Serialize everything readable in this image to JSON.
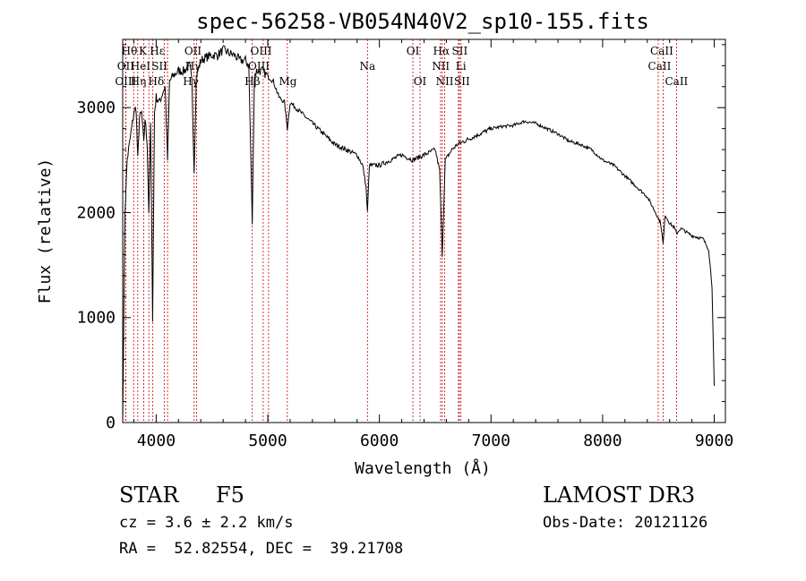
{
  "chart_data": {
    "type": "line",
    "title": "spec-56258-VB054N40V2_sp10-155.fits",
    "xlabel": "Wavelength (Å)",
    "ylabel": "Flux (relative)",
    "xlim": [
      3700,
      9100
    ],
    "ylim": [
      0,
      3650
    ],
    "xticks": [
      4000,
      5000,
      6000,
      7000,
      8000,
      9000
    ],
    "yticks": [
      0,
      1000,
      2000,
      3000
    ],
    "grid": false,
    "series": [
      {
        "name": "flux",
        "x": [
          3700,
          3720,
          3740,
          3760,
          3780,
          3800,
          3820,
          3835,
          3850,
          3870,
          3889,
          3900,
          3920,
          3934,
          3950,
          3968,
          3985,
          4000,
          4030,
          4060,
          4080,
          4102,
          4120,
          4150,
          4200,
          4250,
          4300,
          4320,
          4340,
          4360,
          4400,
          4450,
          4500,
          4550,
          4600,
          4650,
          4700,
          4750,
          4800,
          4830,
          4861,
          4880,
          4900,
          4950,
          5000,
          5050,
          5100,
          5150,
          5175,
          5200,
          5300,
          5400,
          5500,
          5600,
          5700,
          5800,
          5850,
          5880,
          5893,
          5910,
          5950,
          6000,
          6100,
          6200,
          6300,
          6400,
          6500,
          6540,
          6563,
          6590,
          6650,
          6700,
          6800,
          6900,
          7000,
          7100,
          7200,
          7300,
          7400,
          7500,
          7600,
          7700,
          7800,
          7900,
          8000,
          8100,
          8200,
          8300,
          8400,
          8450,
          8498,
          8520,
          8542,
          8560,
          8600,
          8640,
          8662,
          8700,
          8800,
          8900,
          8950,
          8980,
          9000
        ],
        "y": [
          0,
          2000,
          2500,
          2650,
          2800,
          2950,
          3000,
          2500,
          2900,
          2950,
          2650,
          2900,
          2650,
          2000,
          2850,
          1000,
          2950,
          3100,
          3050,
          3150,
          3200,
          2500,
          3250,
          3300,
          3350,
          3350,
          3400,
          3250,
          2400,
          3300,
          3450,
          3480,
          3500,
          3500,
          3550,
          3520,
          3500,
          3450,
          3450,
          3400,
          1900,
          3300,
          3350,
          3350,
          3300,
          3250,
          3100,
          3050,
          2800,
          3050,
          2950,
          2850,
          2750,
          2650,
          2600,
          2550,
          2450,
          2250,
          2000,
          2450,
          2450,
          2450,
          2500,
          2550,
          2500,
          2550,
          2600,
          2400,
          1600,
          2500,
          2600,
          2650,
          2700,
          2750,
          2800,
          2820,
          2830,
          2870,
          2850,
          2800,
          2750,
          2680,
          2650,
          2600,
          2500,
          2450,
          2350,
          2250,
          2150,
          2050,
          1950,
          1900,
          1700,
          1980,
          1900,
          1860,
          1800,
          1850,
          1780,
          1750,
          1650,
          1300,
          350
        ]
      }
    ],
    "lines": [
      {
        "name": "Hθ",
        "x": 3798
      },
      {
        "name": "OII",
        "x": 3727
      },
      {
        "name": "OIII",
        "x": 3727
      },
      {
        "name": "K",
        "x": 3934
      },
      {
        "name": "HeI",
        "x": 3889
      },
      {
        "name": "Hη",
        "x": 3835
      },
      {
        "name": "Hε",
        "x": 3970
      },
      {
        "name": "SII",
        "x": 4072
      },
      {
        "name": "Hδ",
        "x": 4102
      },
      {
        "name": "OIII",
        "x": 4363
      },
      {
        "name": "Hγ",
        "x": 4340
      },
      {
        "name": "Hβ",
        "x": 4861
      },
      {
        "name": "OIII",
        "x": 4959
      },
      {
        "name": "OIII",
        "x": 5007
      },
      {
        "name": "Mg",
        "x": 5175
      },
      {
        "name": "Na",
        "x": 5893
      },
      {
        "name": "OI",
        "x": 6300
      },
      {
        "name": "OI",
        "x": 6364
      },
      {
        "name": "Hα",
        "x": 6563
      },
      {
        "name": "NII",
        "x": 6548
      },
      {
        "name": "NII",
        "x": 6584
      },
      {
        "name": "SII",
        "x": 6717
      },
      {
        "name": "Li",
        "x": 6708
      },
      {
        "name": "SII",
        "x": 6731
      },
      {
        "name": "CaII",
        "x": 8498
      },
      {
        "name": "CaII",
        "x": 8542
      },
      {
        "name": "CaII",
        "x": 8662
      }
    ],
    "line_labels": [
      {
        "text": "Hθ",
        "row": 0,
        "x": 3760
      },
      {
        "text": "OII",
        "row": 1,
        "x": 3727
      },
      {
        "text": "OIII",
        "row": 2,
        "x": 3727
      },
      {
        "text": "K",
        "row": 0,
        "x": 3880
      },
      {
        "text": "HeI",
        "row": 1,
        "x": 3860
      },
      {
        "text": "Hη",
        "row": 2,
        "x": 3840
      },
      {
        "text": "Hε",
        "row": 0,
        "x": 4010
      },
      {
        "text": "SII",
        "row": 1,
        "x": 4030
      },
      {
        "text": "Hδ",
        "row": 2,
        "x": 4000
      },
      {
        "text": "OII",
        "row": 0,
        "x": 4330
      },
      {
        "text": "Hγ",
        "row": 1,
        "x": 4330
      },
      {
        "text": "Hγ",
        "row": 2,
        "x": 4310
      },
      {
        "text": "OIII",
        "row": 0,
        "x": 4940
      },
      {
        "text": "OIII",
        "row": 1,
        "x": 4920
      },
      {
        "text": "Hβ",
        "row": 2,
        "x": 4862
      },
      {
        "text": "Mg",
        "row": 2,
        "x": 5180
      },
      {
        "text": "Na",
        "row": 1,
        "x": 5893
      },
      {
        "text": "OI",
        "row": 0,
        "x": 6300
      },
      {
        "text": "OI",
        "row": 2,
        "x": 6364
      },
      {
        "text": "Hα",
        "row": 0,
        "x": 6555
      },
      {
        "text": "NII",
        "row": 1,
        "x": 6550
      },
      {
        "text": "NII",
        "row": 2,
        "x": 6585
      },
      {
        "text": "SII",
        "row": 0,
        "x": 6720
      },
      {
        "text": "Li",
        "row": 1,
        "x": 6730
      },
      {
        "text": "SII",
        "row": 2,
        "x": 6740
      },
      {
        "text": "CaII",
        "row": 0,
        "x": 8530
      },
      {
        "text": "CaII",
        "row": 1,
        "x": 8510
      },
      {
        "text": "CaII",
        "row": 2,
        "x": 8662
      }
    ]
  },
  "info": {
    "object_class": "STAR",
    "subclass": "F5",
    "survey": "LAMOST DR3",
    "cz": "cz = 3.6 ± 2.2 km/s",
    "obs_date": "Obs-Date: 20121126",
    "coords": "RA =  52.82554, DEC =  39.21708"
  },
  "colors": {
    "spectrum": "#000000",
    "line_marker": "#cc0000",
    "axis": "#000000"
  }
}
